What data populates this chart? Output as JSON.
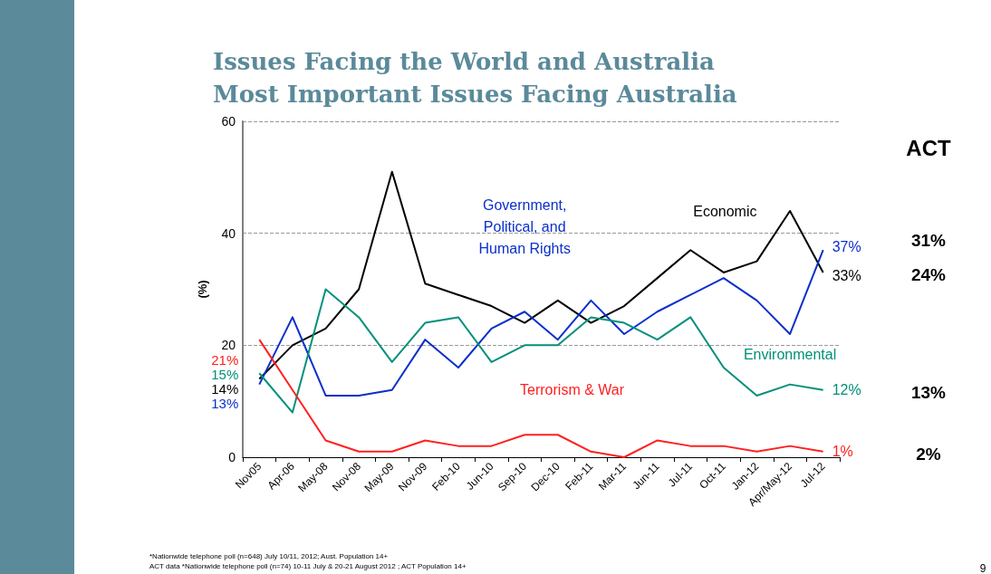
{
  "chart_data": {
    "type": "line",
    "title": "Issues Facing the World and Australia",
    "subtitle": "Most Important Issues Facing Australia",
    "ylabel": "(%)",
    "categories": [
      "Nov05",
      "Apr-06",
      "May-08",
      "Nov-08",
      "May-09",
      "Nov-09",
      "Feb-10",
      "Jun-10",
      "Sep-10",
      "Dec-10",
      "Feb-11",
      "Mar-11",
      "Jun-11",
      "Jul-11",
      "Oct-11",
      "Jan-12",
      "Apr/May-12",
      "Jul-12"
    ],
    "series": [
      {
        "name": "Economic",
        "color": "#000000",
        "values": [
          14,
          20,
          23,
          30,
          51,
          31,
          29,
          27,
          24,
          28,
          24,
          27,
          32,
          37,
          33,
          35,
          44,
          33
        ],
        "value_labels": [
          "14%",
          null,
          null,
          null,
          null,
          null,
          null,
          null,
          null,
          null,
          null,
          null,
          null,
          null,
          null,
          null,
          null,
          "33%"
        ]
      },
      {
        "name": "Government, Political, and Human Rights",
        "color": "#0a2fcc",
        "values": [
          13,
          25,
          11,
          11,
          12,
          21,
          16,
          23,
          26,
          21,
          28,
          22,
          26,
          29,
          32,
          28,
          22,
          37
        ],
        "value_labels": [
          "13%",
          null,
          null,
          null,
          null,
          null,
          null,
          null,
          null,
          null,
          null,
          null,
          null,
          null,
          null,
          null,
          null,
          "37%"
        ]
      },
      {
        "name": "Environmental",
        "color": "#00907a",
        "values": [
          15,
          8,
          30,
          25,
          17,
          24,
          25,
          17,
          20,
          20,
          25,
          24,
          21,
          25,
          16,
          11,
          13,
          12
        ],
        "value_labels": [
          "15%",
          null,
          null,
          null,
          null,
          null,
          null,
          null,
          null,
          null,
          null,
          null,
          null,
          null,
          null,
          null,
          null,
          "12%"
        ]
      },
      {
        "name": "Terrorism & War",
        "color": "#ff2020",
        "values": [
          21,
          12,
          3,
          1,
          1,
          3,
          2,
          2,
          4,
          4,
          1,
          0,
          3,
          2,
          2,
          1,
          2,
          1
        ],
        "value_labels": [
          "21%",
          null,
          null,
          null,
          null,
          null,
          null,
          null,
          null,
          null,
          null,
          null,
          null,
          null,
          null,
          null,
          null,
          "1%"
        ]
      }
    ],
    "ylim": [
      0,
      60
    ],
    "yticks": [
      0,
      20,
      40,
      60
    ],
    "grid": "y",
    "legend": false,
    "marker": "none",
    "line_style": "solid",
    "annotations": [
      "ACT",
      "31%",
      "24%",
      "13%",
      "2%",
      "*Nationwide telephone poll (n=648) July 10/11, 2012; Aust. Population 14+",
      "ACT data *Nationwide telephone poll (n=74) 10-11 July & 20-21 August 2012 ; ACT Population 14+",
      "9"
    ]
  }
}
